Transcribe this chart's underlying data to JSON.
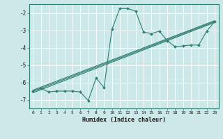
{
  "xlabel": "Humidex (Indice chaleur)",
  "bg_color": "#cce8e8",
  "grid_color": "#ffffff",
  "line_color": "#2e7d6e",
  "xlim": [
    -0.5,
    23.5
  ],
  "ylim": [
    -7.5,
    -1.5
  ],
  "xticks": [
    0,
    1,
    2,
    3,
    4,
    5,
    6,
    7,
    8,
    9,
    10,
    11,
    12,
    13,
    14,
    15,
    16,
    17,
    18,
    19,
    20,
    21,
    22,
    23
  ],
  "yticks": [
    -7,
    -6,
    -5,
    -4,
    -3,
    -2
  ],
  "data_x": [
    0,
    1,
    2,
    3,
    4,
    5,
    6,
    7,
    8,
    9,
    10,
    11,
    12,
    13,
    14,
    15,
    16,
    17,
    18,
    19,
    20,
    21,
    22,
    23
  ],
  "data_y": [
    -6.5,
    -6.35,
    -6.55,
    -6.5,
    -6.5,
    -6.5,
    -6.55,
    -7.05,
    -5.75,
    -6.3,
    -2.95,
    -1.75,
    -1.75,
    -1.9,
    -3.1,
    -3.2,
    -3.05,
    -3.6,
    -3.95,
    -3.9,
    -3.85,
    -3.85,
    -3.05,
    -2.5
  ],
  "trend1_x": [
    0,
    23
  ],
  "trend1_y": [
    -6.6,
    -2.55
  ],
  "trend2_x": [
    0,
    23
  ],
  "trend2_y": [
    -6.45,
    -2.45
  ],
  "trend3_x": [
    0,
    23
  ],
  "trend3_y": [
    -6.52,
    -2.5
  ]
}
